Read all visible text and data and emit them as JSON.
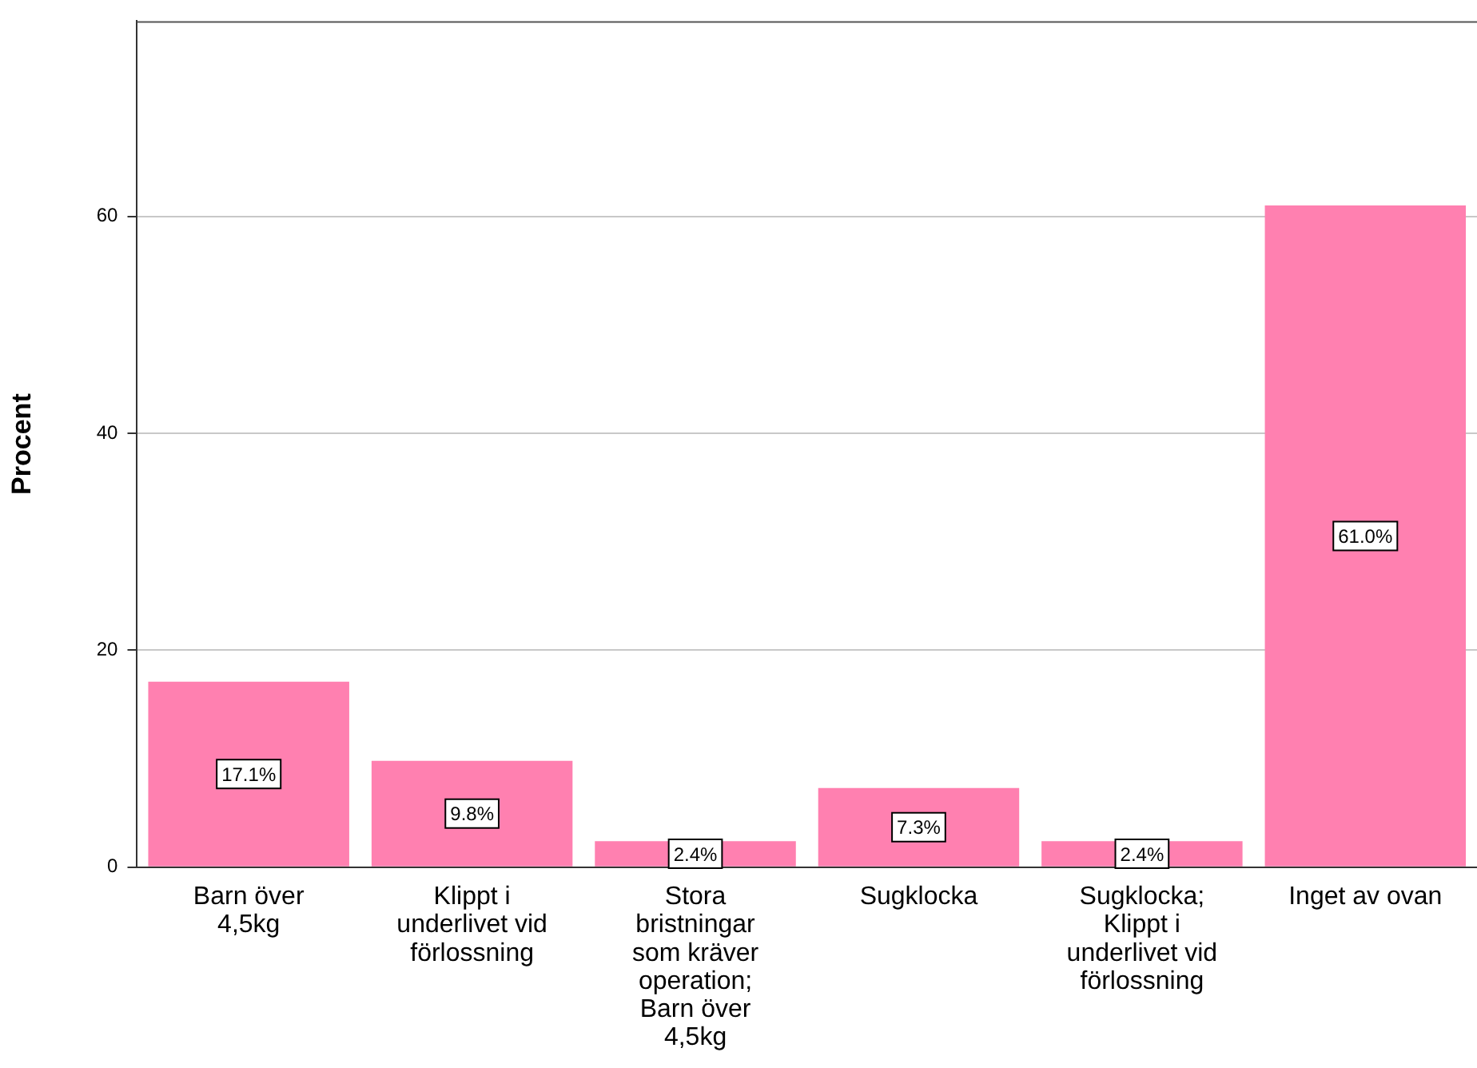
{
  "chart_data": {
    "type": "bar",
    "ylabel": "Procent",
    "categories": [
      "Barn över 4,5kg",
      "Klippt i underlivet vid förlossning",
      "Stora bristningar som kräver operation; Barn över 4,5kg",
      "Sugklocka",
      "Sugklocka; Klippt i underlivet vid förlossning",
      "Inget av ovan"
    ],
    "values": [
      17.1,
      9.8,
      2.4,
      7.3,
      2.4,
      61.0
    ],
    "value_labels": [
      "17.1%",
      "9.8%",
      "2.4%",
      "7.3%",
      "2.4%",
      "61.0%"
    ],
    "color": "#ff80b0",
    "ylim": [
      0,
      78
    ],
    "yticks": [
      0,
      20,
      40,
      60
    ],
    "grid": "y",
    "legend": false
  }
}
